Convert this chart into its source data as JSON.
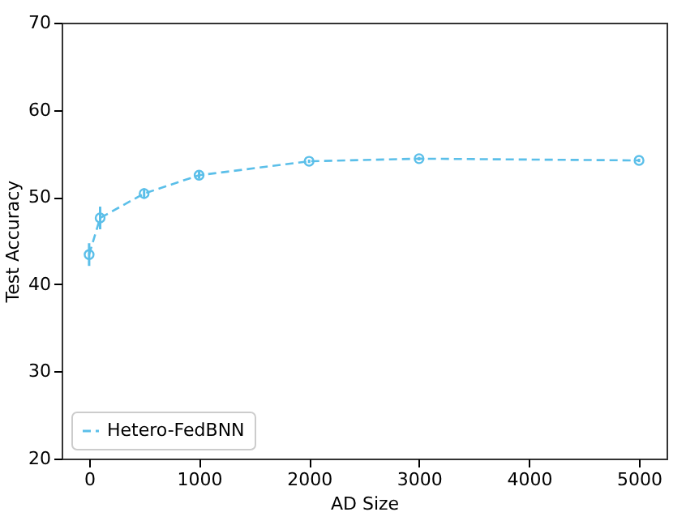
{
  "chart_data": {
    "type": "line",
    "xlabel": "AD Size",
    "ylabel": "Test Accuracy",
    "x": [
      0,
      100,
      500,
      1000,
      2000,
      3000,
      5000
    ],
    "series": [
      {
        "name": "Hetero-FedBNN",
        "color": "#5bbfe9",
        "values": [
          43.4,
          47.6,
          50.4,
          52.5,
          54.1,
          54.4,
          54.2
        ],
        "errors": [
          1.3,
          1.3,
          0.6,
          0.4,
          0.2,
          0.2,
          0.2
        ]
      }
    ],
    "xlim": [
      -250,
      5250
    ],
    "xticks": [
      0,
      1000,
      2000,
      3000,
      4000,
      5000
    ],
    "ylim": [
      20,
      70
    ],
    "yticks": [
      20,
      30,
      40,
      50,
      60,
      70
    ],
    "grid": false,
    "legend": "bottom left",
    "marker": "circle",
    "line_style": "dashed"
  }
}
